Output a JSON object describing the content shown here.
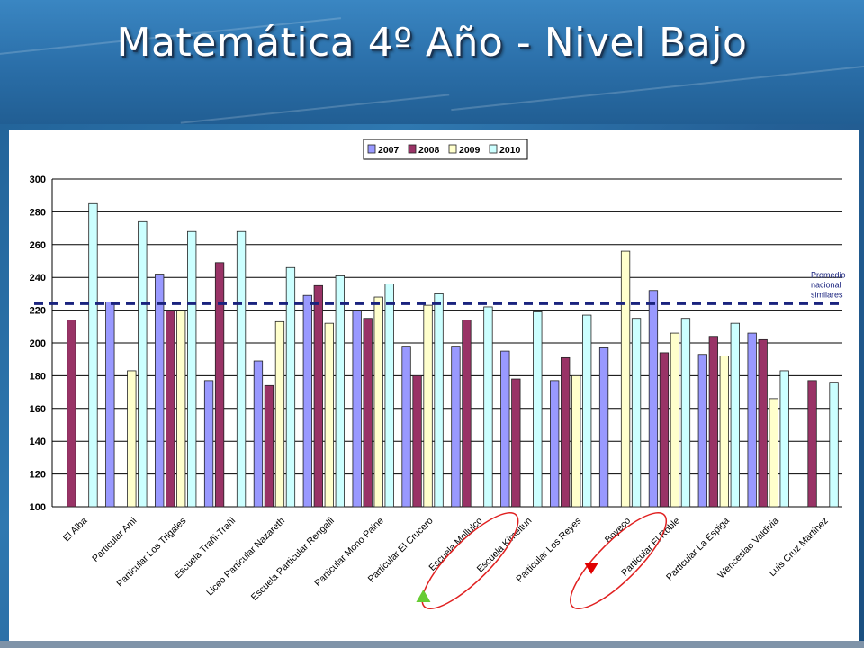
{
  "slide": {
    "title": "Matemática 4º Año - Nivel Bajo"
  },
  "colors": {
    "y2007": "#9999ff",
    "y2008": "#993366",
    "y2009": "#ffffcc",
    "y2010": "#ccffff",
    "reference_line": "#1a237e",
    "marker_up": "#66cc33",
    "marker_down": "#e00000",
    "highlight_ellipse": "#e02020"
  },
  "chart_data": {
    "type": "bar",
    "categories": [
      "El Alba",
      "Particular Ami",
      "Particular Los Trigales",
      "Escuela Trañi-Trañi",
      "Liceo Particular Nazareth",
      "Escuela Particular Rengalli",
      "Particular Mono Paine",
      "Particular El Crucero",
      "Escuela Mollulco",
      "Escuela Kimeltun",
      "Particular Los Reyes",
      "Boyeco",
      "Particular El Roble",
      "Particular La Espiga",
      "Wenceslao Valdivia",
      "Luis Cruz Martinez"
    ],
    "series": [
      {
        "name": "2007",
        "color_key": "y2007",
        "values": [
          null,
          225,
          242,
          177,
          189,
          229,
          220,
          198,
          198,
          195,
          177,
          197,
          232,
          193,
          206,
          null
        ]
      },
      {
        "name": "2008",
        "color_key": "y2008",
        "values": [
          214,
          null,
          220,
          249,
          174,
          235,
          215,
          180,
          214,
          178,
          191,
          null,
          194,
          204,
          202,
          177
        ]
      },
      {
        "name": "2009",
        "color_key": "y2009",
        "values": [
          null,
          183,
          220,
          null,
          213,
          212,
          228,
          223,
          null,
          null,
          180,
          256,
          206,
          192,
          166,
          null
        ]
      },
      {
        "name": "2010",
        "color_key": "y2010",
        "values": [
          285,
          274,
          268,
          268,
          246,
          241,
          236,
          230,
          222,
          219,
          217,
          215,
          215,
          212,
          183,
          176
        ]
      }
    ],
    "ylim": [
      100,
      300
    ],
    "yticks": [
      100,
      120,
      140,
      160,
      180,
      200,
      220,
      240,
      260,
      280,
      300
    ],
    "grid": true,
    "legend": "top-center",
    "reference_line": {
      "value": 224,
      "label_lines": [
        "Promedio",
        "nacional",
        "similares"
      ]
    },
    "highlights": [
      {
        "category": "Escuela Mollulco",
        "marker": "up"
      },
      {
        "category": "Boyeco",
        "marker": "down"
      }
    ]
  }
}
